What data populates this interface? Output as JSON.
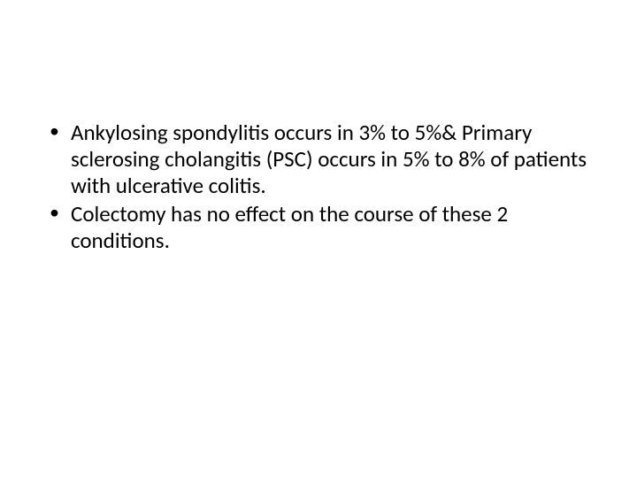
{
  "slide": {
    "background_color": "#ffffff",
    "text_color": "#000000",
    "font_family": "Calibri, Arial, sans-serif",
    "font_size_pt": 25,
    "line_height": 1.2,
    "bullets": [
      {
        "text": "Ankylosing spondylitis occurs in 3% to 5%& Primary sclerosing cholangitis (PSC) occurs in 5% to 8% of patients with ulcerative colitis."
      },
      {
        "text": "Colectomy has no effect on the course of these 2 conditions."
      }
    ]
  }
}
